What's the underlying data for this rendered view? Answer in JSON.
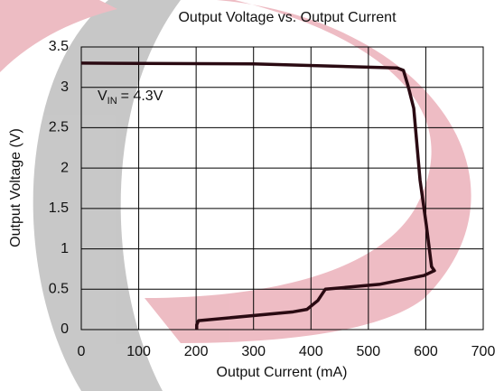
{
  "chart_data": {
    "type": "line",
    "title": "Output Voltage vs. Output Current",
    "x_label": "Output Current (mA)",
    "y_label": "Output Voltage (V)",
    "annotation": {
      "main": "V",
      "subscript": "IN",
      "suffix": "= 4.3V"
    },
    "xlim": [
      0,
      700
    ],
    "xticks": [
      0,
      100,
      200,
      300,
      400,
      500,
      600,
      700
    ],
    "ylim": [
      0,
      3.5
    ],
    "yticks": [
      0,
      0.5,
      1,
      1.5,
      2,
      2.5,
      3,
      3.5
    ],
    "grid": true,
    "x": [
      0,
      300,
      550,
      561,
      569,
      579,
      590,
      601,
      610,
      615,
      597,
      519,
      425,
      412,
      393,
      369,
      204,
      201,
      201
    ],
    "series": [
      {
        "color": "#2a0a12",
        "values": [
          3.3,
          3.29,
          3.24,
          3.21,
          3.02,
          2.74,
          1.85,
          1.29,
          0.78,
          0.73,
          0.67,
          0.56,
          0.5,
          0.36,
          0.25,
          0.22,
          0.11,
          0.06,
          0
        ]
      }
    ]
  }
}
